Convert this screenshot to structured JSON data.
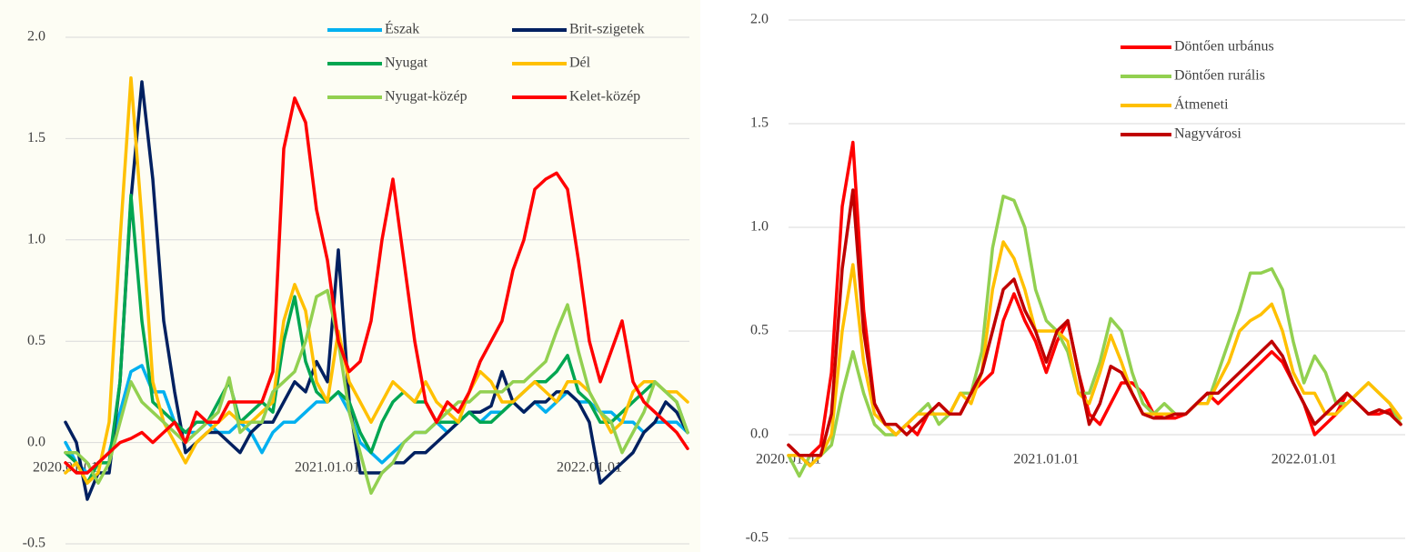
{
  "chart_data": [
    {
      "type": "line",
      "categories": [
        "2020.01.01",
        null,
        null,
        null,
        null,
        null,
        null,
        null,
        null,
        null,
        null,
        null,
        null,
        null,
        null,
        null,
        null,
        null,
        null,
        null,
        null,
        null,
        null,
        null,
        "2021.01.01",
        null,
        null,
        null,
        null,
        null,
        null,
        null,
        null,
        null,
        null,
        null,
        null,
        null,
        null,
        null,
        null,
        null,
        null,
        null,
        null,
        null,
        null,
        null,
        "2022.01.01",
        null,
        null,
        null,
        null,
        null,
        null,
        null,
        null,
        null
      ],
      "ylim": [
        -0.5,
        2.0
      ],
      "yticks": [
        -0.5,
        {
          "value": 0,
          "label": "0.0"
        },
        0.5,
        {
          "value": 1,
          "label": "1.0"
        },
        1.5,
        {
          "value": 2,
          "label": "2.0"
        }
      ],
      "grid": true,
      "series": [
        {
          "name": "Észak",
          "color": "#00b0f0",
          "values": [
            0.0,
            -0.1,
            -0.15,
            -0.1,
            -0.05,
            0.15,
            0.35,
            0.38,
            0.25,
            0.25,
            0.1,
            0.05,
            0.05,
            0.1,
            0.05,
            0.05,
            0.1,
            0.05,
            -0.05,
            0.05,
            0.1,
            0.1,
            0.15,
            0.2,
            0.2,
            0.25,
            0.15,
            0.0,
            -0.05,
            -0.1,
            -0.05,
            0.0,
            0.05,
            0.05,
            0.1,
            0.05,
            0.1,
            0.15,
            0.1,
            0.15,
            0.15,
            0.2,
            0.15,
            0.2,
            0.15,
            0.2,
            0.25,
            0.2,
            0.2,
            0.15,
            0.15,
            0.1,
            0.1,
            0.05,
            0.1,
            0.1,
            0.1,
            0.05
          ]
        },
        {
          "name": "Brit-szigetek",
          "color": "#002060",
          "values": [
            0.1,
            0.0,
            -0.28,
            -0.15,
            -0.15,
            0.3,
            1.2,
            1.78,
            1.3,
            0.6,
            0.25,
            -0.05,
            0.0,
            0.05,
            0.05,
            0.0,
            -0.05,
            0.05,
            0.1,
            0.1,
            0.2,
            0.3,
            0.25,
            0.4,
            0.3,
            0.95,
            0.2,
            -0.15,
            -0.15,
            -0.15,
            -0.1,
            -0.1,
            -0.05,
            -0.05,
            0.0,
            0.05,
            0.1,
            0.15,
            0.15,
            0.18,
            0.35,
            0.2,
            0.15,
            0.2,
            0.2,
            0.25,
            0.25,
            0.2,
            0.1,
            -0.2,
            -0.15,
            -0.1,
            -0.05,
            0.05,
            0.1,
            0.2,
            0.15,
            0.05
          ]
        },
        {
          "name": "Nyugat",
          "color": "#00a651",
          "values": [
            -0.05,
            -0.1,
            -0.2,
            -0.1,
            -0.1,
            0.3,
            1.22,
            0.6,
            0.2,
            0.15,
            0.1,
            0.05,
            0.1,
            0.1,
            0.2,
            0.3,
            0.1,
            0.15,
            0.2,
            0.15,
            0.5,
            0.72,
            0.4,
            0.25,
            0.2,
            0.25,
            0.2,
            0.05,
            -0.05,
            0.1,
            0.2,
            0.25,
            0.2,
            0.2,
            0.1,
            0.1,
            0.1,
            0.15,
            0.1,
            0.1,
            0.15,
            0.2,
            0.25,
            0.3,
            0.3,
            0.35,
            0.43,
            0.25,
            0.2,
            0.1,
            0.1,
            0.15,
            0.2,
            0.25,
            0.3,
            0.25,
            0.2,
            0.05
          ]
        },
        {
          "name": "Dél",
          "color": "#ffc000",
          "values": [
            -0.15,
            -0.1,
            -0.2,
            -0.15,
            0.1,
            1.0,
            1.8,
            1.1,
            0.3,
            0.1,
            0.0,
            -0.1,
            0.0,
            0.05,
            0.1,
            0.15,
            0.1,
            0.1,
            0.15,
            0.2,
            0.6,
            0.78,
            0.65,
            0.3,
            0.2,
            0.55,
            0.3,
            0.2,
            0.1,
            0.2,
            0.3,
            0.25,
            0.2,
            0.3,
            0.2,
            0.15,
            0.1,
            0.25,
            0.35,
            0.3,
            0.2,
            0.2,
            0.25,
            0.3,
            0.25,
            0.2,
            0.3,
            0.3,
            0.25,
            0.15,
            0.05,
            0.1,
            0.25,
            0.3,
            0.3,
            0.25,
            0.25,
            0.2
          ]
        },
        {
          "name": "Nyugat-közép",
          "color": "#92d050",
          "values": [
            -0.05,
            -0.05,
            -0.1,
            -0.2,
            -0.1,
            0.1,
            0.3,
            0.2,
            0.15,
            0.1,
            0.05,
            0.0,
            0.05,
            0.1,
            0.15,
            0.32,
            0.05,
            0.1,
            0.1,
            0.25,
            0.3,
            0.35,
            0.5,
            0.72,
            0.75,
            0.5,
            0.15,
            -0.05,
            -0.25,
            -0.15,
            -0.1,
            0.0,
            0.05,
            0.05,
            0.1,
            0.15,
            0.2,
            0.2,
            0.25,
            0.25,
            0.25,
            0.3,
            0.3,
            0.35,
            0.4,
            0.55,
            0.68,
            0.45,
            0.25,
            0.15,
            0.1,
            -0.05,
            0.05,
            0.15,
            0.3,
            0.25,
            0.2,
            0.05
          ]
        },
        {
          "name": "Kelet-közép",
          "color": "#ff0000",
          "values": [
            -0.1,
            -0.15,
            -0.15,
            -0.1,
            -0.05,
            0.0,
            0.02,
            0.05,
            0.0,
            0.05,
            0.1,
            0.0,
            0.15,
            0.1,
            0.1,
            0.2,
            0.2,
            0.2,
            0.2,
            0.35,
            1.45,
            1.7,
            1.58,
            1.15,
            0.9,
            0.5,
            0.35,
            0.4,
            0.6,
            1.0,
            1.3,
            0.9,
            0.5,
            0.2,
            0.1,
            0.2,
            0.15,
            0.25,
            0.4,
            0.5,
            0.6,
            0.85,
            1.0,
            1.25,
            1.3,
            1.33,
            1.25,
            0.9,
            0.5,
            0.3,
            0.45,
            0.6,
            0.3,
            0.2,
            0.15,
            0.1,
            0.05,
            -0.03
          ]
        }
      ]
    },
    {
      "type": "line",
      "categories": [
        "2020.01.01",
        null,
        null,
        null,
        null,
        null,
        null,
        null,
        null,
        null,
        null,
        null,
        null,
        null,
        null,
        null,
        null,
        null,
        null,
        null,
        null,
        null,
        null,
        null,
        "2021.01.01",
        null,
        null,
        null,
        null,
        null,
        null,
        null,
        null,
        null,
        null,
        null,
        null,
        null,
        null,
        null,
        null,
        null,
        null,
        null,
        null,
        null,
        null,
        null,
        "2022.01.01",
        null,
        null,
        null,
        null,
        null,
        null,
        null,
        null,
        null
      ],
      "ylim": [
        -0.5,
        2.0
      ],
      "yticks": [
        -0.5,
        {
          "value": 0,
          "label": "0.0"
        },
        0.5,
        {
          "value": 1,
          "label": "1.0"
        },
        1.5,
        {
          "value": 2,
          "label": "2.0"
        }
      ],
      "grid": true,
      "series": [
        {
          "name": "Döntően urbánus",
          "color": "#ff0000",
          "values": [
            -0.05,
            -0.1,
            -0.1,
            -0.05,
            0.3,
            1.1,
            1.41,
            0.6,
            0.15,
            0.05,
            0.0,
            0.05,
            0.0,
            0.1,
            0.15,
            0.1,
            0.1,
            0.2,
            0.25,
            0.3,
            0.55,
            0.68,
            0.55,
            0.45,
            0.3,
            0.45,
            0.55,
            0.3,
            0.1,
            0.05,
            0.15,
            0.25,
            0.25,
            0.2,
            0.1,
            0.08,
            0.08,
            0.1,
            0.15,
            0.2,
            0.15,
            0.2,
            0.25,
            0.3,
            0.35,
            0.4,
            0.35,
            0.25,
            0.15,
            0.0,
            0.05,
            0.1,
            0.2,
            0.15,
            0.1,
            0.1,
            0.12,
            0.05
          ]
        },
        {
          "name": "Döntően rurális",
          "color": "#92d050",
          "values": [
            -0.1,
            -0.2,
            -0.1,
            -0.1,
            -0.05,
            0.2,
            0.4,
            0.2,
            0.05,
            0.0,
            0.0,
            0.05,
            0.1,
            0.15,
            0.05,
            0.1,
            0.2,
            0.2,
            0.4,
            0.9,
            1.15,
            1.13,
            1.0,
            0.7,
            0.55,
            0.5,
            0.4,
            0.2,
            0.2,
            0.35,
            0.56,
            0.5,
            0.3,
            0.15,
            0.1,
            0.15,
            0.1,
            0.1,
            0.15,
            0.15,
            0.3,
            0.45,
            0.6,
            0.78,
            0.78,
            0.8,
            0.7,
            0.45,
            0.25,
            0.38,
            0.3,
            0.15,
            0.15,
            0.2,
            0.25,
            0.2,
            0.15,
            0.05
          ]
        },
        {
          "name": "Átmeneti",
          "color": "#ffc000",
          "values": [
            -0.1,
            -0.1,
            -0.15,
            -0.1,
            0.0,
            0.5,
            0.82,
            0.35,
            0.1,
            0.05,
            0.0,
            0.05,
            0.1,
            0.1,
            0.1,
            0.1,
            0.2,
            0.15,
            0.3,
            0.7,
            0.93,
            0.85,
            0.7,
            0.5,
            0.5,
            0.5,
            0.45,
            0.2,
            0.15,
            0.3,
            0.48,
            0.35,
            0.2,
            0.1,
            0.1,
            0.1,
            0.1,
            0.1,
            0.15,
            0.15,
            0.25,
            0.35,
            0.5,
            0.55,
            0.58,
            0.63,
            0.5,
            0.3,
            0.2,
            0.2,
            0.1,
            0.1,
            0.15,
            0.2,
            0.25,
            0.2,
            0.15,
            0.08
          ]
        },
        {
          "name": "Nagyvárosi",
          "color": "#c00000",
          "values": [
            -0.05,
            -0.1,
            -0.1,
            -0.1,
            0.1,
            0.8,
            1.18,
            0.5,
            0.15,
            0.05,
            0.05,
            0.0,
            0.05,
            0.1,
            0.15,
            0.1,
            0.1,
            0.2,
            0.3,
            0.5,
            0.7,
            0.75,
            0.6,
            0.5,
            0.35,
            0.5,
            0.55,
            0.3,
            0.05,
            0.15,
            0.33,
            0.3,
            0.2,
            0.1,
            0.08,
            0.08,
            0.1,
            0.1,
            0.15,
            0.2,
            0.2,
            0.25,
            0.3,
            0.35,
            0.4,
            0.45,
            0.38,
            0.25,
            0.15,
            0.05,
            0.1,
            0.15,
            0.2,
            0.15,
            0.1,
            0.12,
            0.1,
            0.05
          ]
        }
      ]
    }
  ]
}
